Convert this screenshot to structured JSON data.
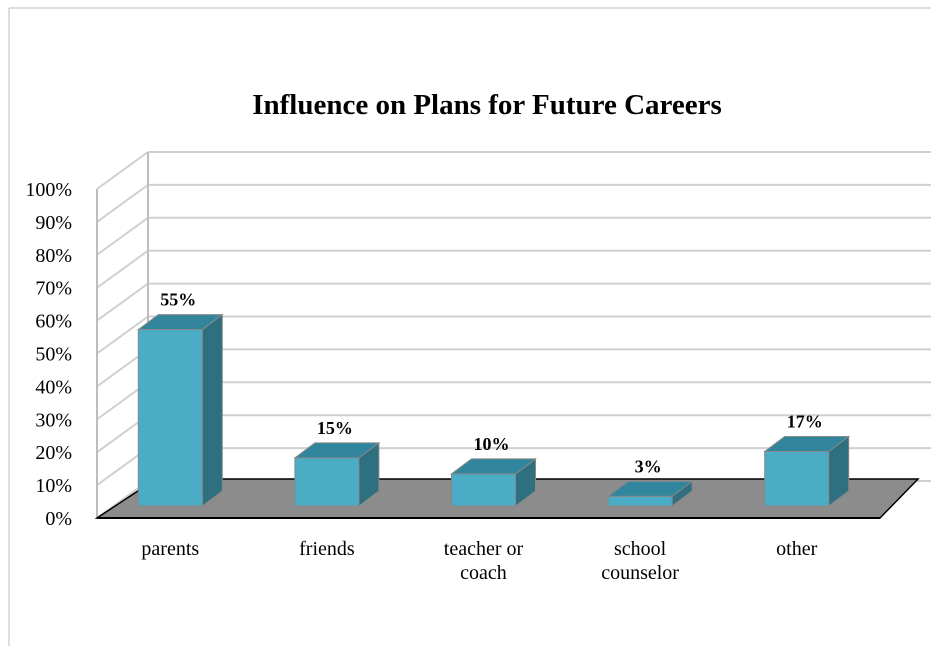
{
  "chart_data": {
    "type": "bar",
    "title": "Influence on Plans for Future Careers",
    "xlabel": "",
    "ylabel": "",
    "categories": [
      [
        "parents"
      ],
      [
        "friends"
      ],
      [
        "teacher or",
        "coach"
      ],
      [
        "school",
        "counselor"
      ],
      [
        "other"
      ]
    ],
    "values": [
      55,
      15,
      10,
      3,
      17
    ],
    "data_labels": [
      "55%",
      "15%",
      "10%",
      "3%",
      "17%"
    ],
    "ylim": [
      0,
      100
    ],
    "yticks": [
      "0%",
      "10%",
      "20%",
      "30%",
      "40%",
      "50%",
      "60%",
      "70%",
      "80%",
      "90%",
      "100%"
    ],
    "grid": true,
    "style": "3d-bar",
    "colors": {
      "bar_front": "#4BACC6",
      "bar_top": "#31859C",
      "bar_side": "#2E6F80",
      "floor": "#8C8C8C",
      "grid": "#D0D0D0"
    }
  }
}
